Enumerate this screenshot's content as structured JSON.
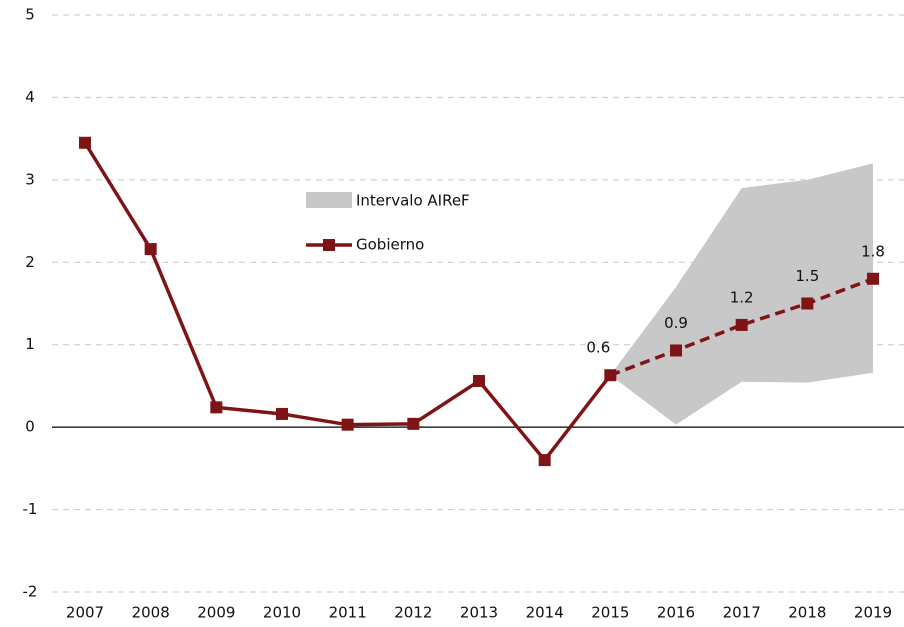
{
  "chart_data": {
    "type": "line",
    "categories": [
      "2007",
      "2008",
      "2009",
      "2010",
      "2011",
      "2012",
      "2013",
      "2014",
      "2015",
      "2016",
      "2017",
      "2018",
      "2019"
    ],
    "series": [
      {
        "name": "Gobierno",
        "color": "#7f1416",
        "values": [
          3.45,
          2.16,
          0.24,
          0.16,
          0.03,
          0.04,
          0.56,
          -0.4,
          0.63,
          0.93,
          1.24,
          1.5,
          1.8
        ],
        "value_labels": [
          null,
          null,
          null,
          null,
          null,
          null,
          null,
          null,
          "0.6",
          "0.9",
          "1.2",
          "1.5",
          "1.8"
        ],
        "dashed_from": "2015"
      }
    ],
    "band": {
      "name": "Intervalo AIReF",
      "color": "#c8c8c8",
      "lower": [
        null,
        null,
        null,
        null,
        null,
        null,
        null,
        null,
        0.63,
        0.03,
        0.55,
        0.54,
        0.66
      ],
      "upper": [
        null,
        null,
        null,
        null,
        null,
        null,
        null,
        null,
        0.63,
        1.7,
        2.9,
        3.0,
        3.2
      ]
    },
    "ylim": [
      -2,
      5
    ],
    "yticks": [
      -2,
      -1,
      0,
      1,
      2,
      3,
      4,
      5
    ],
    "grid": true
  }
}
